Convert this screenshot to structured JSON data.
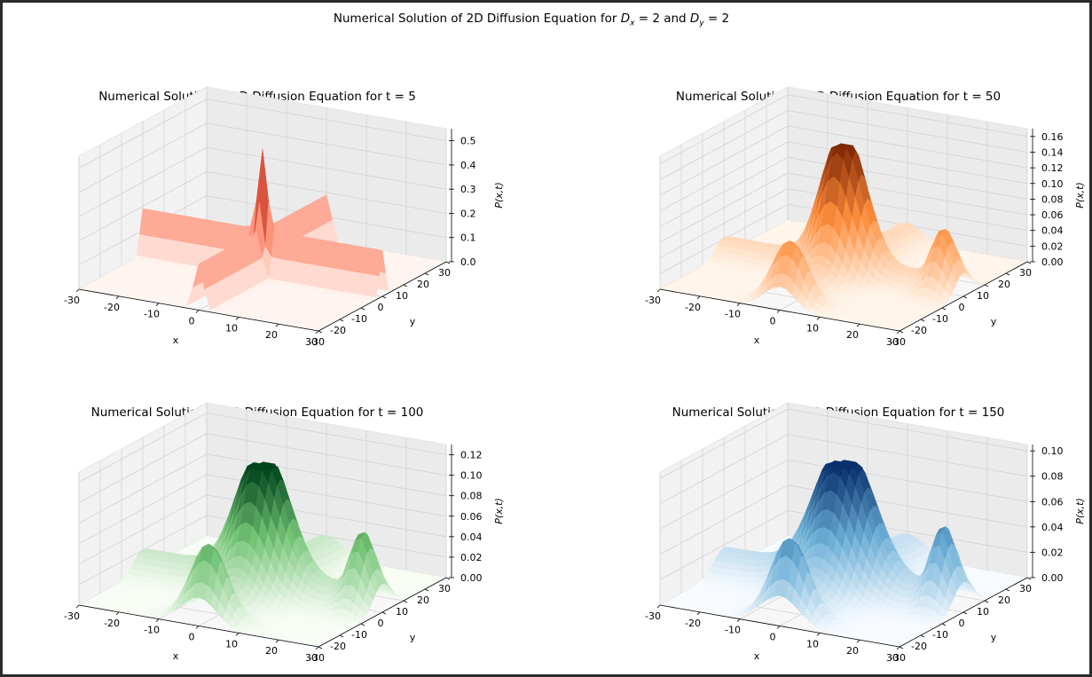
{
  "figure": {
    "suptitle": {
      "prefix": "Numerical Solution of 2D Diffusion Equation for ",
      "dx_symbol": "D",
      "dx_sub": "x",
      "mid": " = 2 and ",
      "dy_symbol": "D",
      "dy_sub": "y",
      "suffix": " = 2"
    }
  },
  "chart_data": [
    {
      "type": "surface3d",
      "title": "Numerical Solution of 2D Diffusion Equation for t = 5",
      "t": 5,
      "colormap": "Reds",
      "colors": {
        "low": "#fff5f0",
        "mid": "#fb6a4a",
        "high": "#67000d"
      },
      "xlabel": "x",
      "ylabel": "y",
      "zlabel": "P(x,t)",
      "x_ticks": [
        "-30",
        "-20",
        "-10",
        "0",
        "10",
        "20",
        "30"
      ],
      "y_ticks": [
        "-30",
        "-20",
        "-10",
        "0",
        "10",
        "20",
        "30"
      ],
      "z_ticks": [
        "0.0",
        "0.1",
        "0.2",
        "0.3",
        "0.4",
        "0.5"
      ],
      "xlim": [
        -30,
        30
      ],
      "ylim": [
        -30,
        30
      ],
      "zlim": [
        0,
        0.55
      ],
      "peak": 0.52,
      "cross_height": 0.19,
      "edge_bump": 0.0,
      "grid": true
    },
    {
      "type": "surface3d",
      "title": "Numerical Solution of 2D Diffusion Equation for t = 50",
      "t": 50,
      "colormap": "Oranges",
      "colors": {
        "low": "#fff5eb",
        "mid": "#fd8d3c",
        "high": "#7f2704"
      },
      "xlabel": "x",
      "ylabel": "y",
      "zlabel": "P(x,t)",
      "x_ticks": [
        "-30",
        "-20",
        "-10",
        "0",
        "10",
        "20",
        "30"
      ],
      "y_ticks": [
        "-30",
        "-20",
        "-10",
        "0",
        "10",
        "20",
        "30"
      ],
      "z_ticks": [
        "0.00",
        "0.02",
        "0.04",
        "0.06",
        "0.08",
        "0.10",
        "0.12",
        "0.14",
        "0.16"
      ],
      "xlim": [
        -30,
        30
      ],
      "ylim": [
        -30,
        30
      ],
      "zlim": [
        0,
        0.17
      ],
      "peak": 0.165,
      "cross_height": 0.075,
      "edge_bump": 0.06,
      "grid": true
    },
    {
      "type": "surface3d",
      "title": "Numerical Solution of 2D Diffusion Equation for t = 100",
      "t": 100,
      "colormap": "Greens",
      "colors": {
        "low": "#f7fcf5",
        "mid": "#74c476",
        "high": "#00441b"
      },
      "xlabel": "x",
      "ylabel": "y",
      "zlabel": "P(x,t)",
      "x_ticks": [
        "-30",
        "-20",
        "-10",
        "0",
        "10",
        "20",
        "30"
      ],
      "y_ticks": [
        "-30",
        "-20",
        "-10",
        "0",
        "10",
        "20",
        "30"
      ],
      "z_ticks": [
        "0.00",
        "0.02",
        "0.04",
        "0.06",
        "0.08",
        "0.10",
        "0.12"
      ],
      "xlim": [
        -30,
        30
      ],
      "ylim": [
        -30,
        30
      ],
      "zlim": [
        0,
        0.13
      ],
      "peak": 0.122,
      "cross_height": 0.06,
      "edge_bump": 0.055,
      "grid": true
    },
    {
      "type": "surface3d",
      "title": "Numerical Solution of 2D Diffusion Equation for t = 150",
      "t": 150,
      "colormap": "Blues",
      "colors": {
        "low": "#f7fbff",
        "mid": "#6baed6",
        "high": "#08306b"
      },
      "xlabel": "x",
      "ylabel": "y",
      "zlabel": "P(x,t)",
      "x_ticks": [
        "-30",
        "-20",
        "-10",
        "0",
        "10",
        "20",
        "30"
      ],
      "y_ticks": [
        "-30",
        "-20",
        "-10",
        "0",
        "10",
        "20",
        "30"
      ],
      "z_ticks": [
        "0.00",
        "0.02",
        "0.04",
        "0.06",
        "0.08",
        "0.10"
      ],
      "xlim": [
        -30,
        30
      ],
      "ylim": [
        -30,
        30
      ],
      "zlim": [
        0,
        0.105
      ],
      "peak": 0.1,
      "cross_height": 0.05,
      "edge_bump": 0.048,
      "grid": true
    }
  ]
}
